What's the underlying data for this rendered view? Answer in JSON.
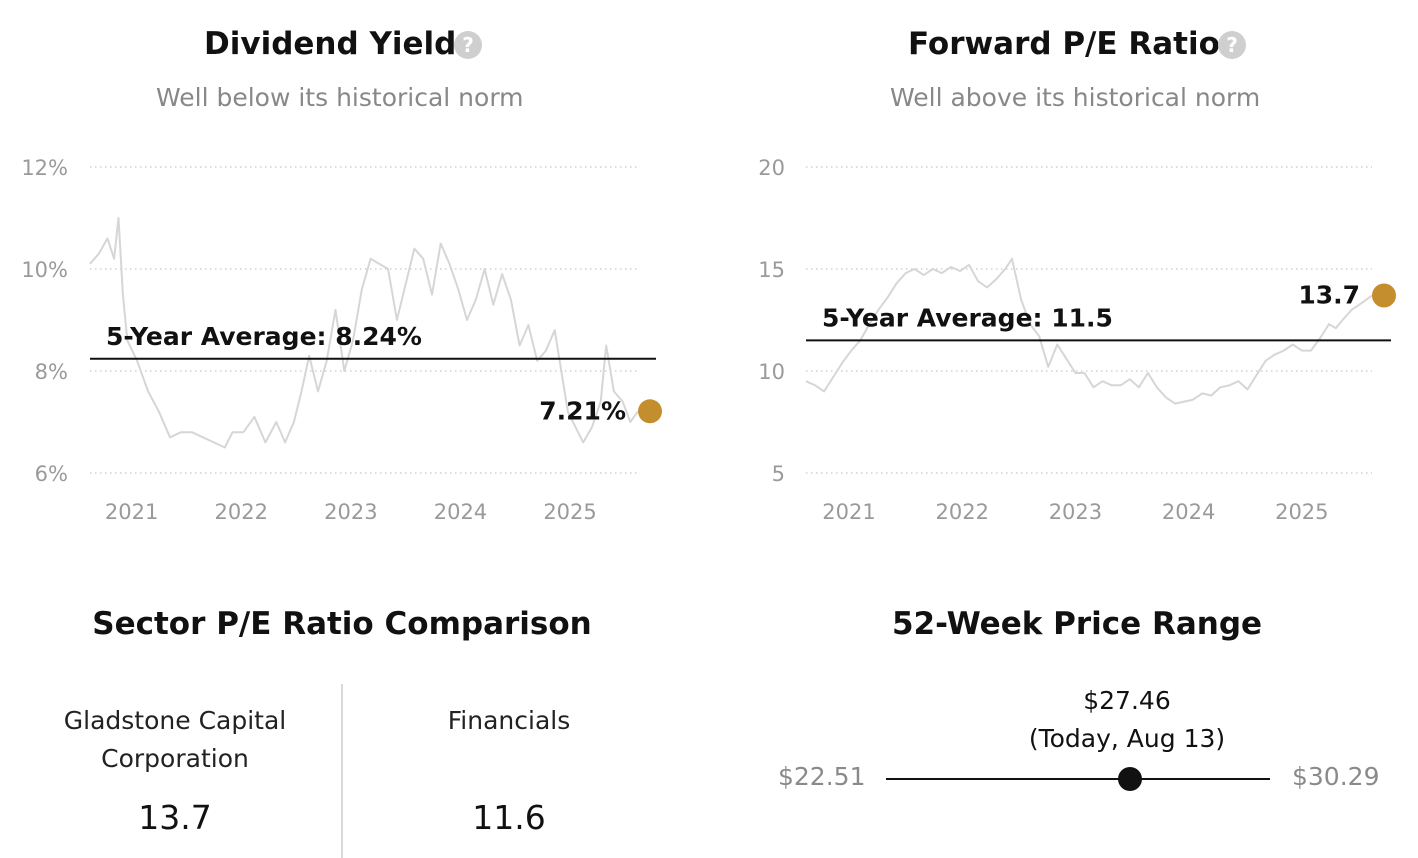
{
  "dividend": {
    "title": "Dividend Yield",
    "subtitle": "Well below its historical norm"
  },
  "pe": {
    "title": "Forward P/E Ratio",
    "subtitle": "Well above its historical norm"
  },
  "sector": {
    "title": "Sector P/E Ratio Comparison",
    "company_name": "Gladstone Capital Corporation",
    "company_value": "13.7",
    "sector_name": "Financials",
    "sector_value": "11.6"
  },
  "range": {
    "title": "52-Week Price Range",
    "current_price": "$27.46",
    "current_note": "(Today, Aug 13)",
    "low": "$22.51",
    "high": "$30.29",
    "low_value": 22.51,
    "high_value": 30.29,
    "current_value": 27.46
  },
  "colors": {
    "accent": "#c48e2e",
    "history_line": "#d6d6d6",
    "average_line": "#111111",
    "grid": "#c8c8c8"
  },
  "icons": [
    "help-icon"
  ],
  "chart_data": [
    {
      "type": "line",
      "title": "Dividend Yield",
      "subtitle": "Well below its historical norm",
      "x_ticks": [
        "2021",
        "2022",
        "2023",
        "2024",
        "2025"
      ],
      "x_range": [
        2020.62,
        2025.62
      ],
      "y_ticks": [
        "6%",
        "8%",
        "10%",
        "12%"
      ],
      "ylim": [
        6,
        12
      ],
      "grid": true,
      "average": {
        "label": "5-Year Average: 8.24%",
        "value": 8.24
      },
      "current": {
        "label": "7.21%",
        "value": 7.21,
        "x": 2025.62
      },
      "series": [
        {
          "x": [
            2020.62,
            2020.7,
            2020.78,
            2020.84,
            2020.88,
            2020.92,
            2020.96,
            2021.05,
            2021.15,
            2021.25,
            2021.35,
            2021.45,
            2021.55,
            2021.65,
            2021.75,
            2021.85,
            2021.92,
            2022.02,
            2022.12,
            2022.22,
            2022.32,
            2022.4,
            2022.48,
            2022.55,
            2022.62,
            2022.7,
            2022.78,
            2022.86,
            2022.94,
            2023.02,
            2023.1,
            2023.18,
            2023.26,
            2023.34,
            2023.42,
            2023.5,
            2023.58,
            2023.66,
            2023.74,
            2023.82,
            2023.9,
            2023.98,
            2024.06,
            2024.14,
            2024.22,
            2024.3,
            2024.38,
            2024.46,
            2024.54,
            2024.62,
            2024.7,
            2024.78,
            2024.86,
            2024.92,
            2024.98,
            2025.05,
            2025.12,
            2025.2,
            2025.28,
            2025.33,
            2025.4,
            2025.48,
            2025.55,
            2025.62
          ],
          "values": [
            10.1,
            10.3,
            10.6,
            10.2,
            11.0,
            9.5,
            8.6,
            8.2,
            7.6,
            7.2,
            6.7,
            6.8,
            6.8,
            6.7,
            6.6,
            6.5,
            6.8,
            6.8,
            7.1,
            6.6,
            7.0,
            6.6,
            7.0,
            7.6,
            8.3,
            7.6,
            8.2,
            9.2,
            8.0,
            8.6,
            9.6,
            10.2,
            10.1,
            10.0,
            9.0,
            9.7,
            10.4,
            10.2,
            9.5,
            10.5,
            10.1,
            9.6,
            9.0,
            9.4,
            10.0,
            9.3,
            9.9,
            9.4,
            8.5,
            8.9,
            8.2,
            8.4,
            8.8,
            8.0,
            7.2,
            6.9,
            6.6,
            6.9,
            7.4,
            8.5,
            7.6,
            7.4,
            7.0,
            7.21
          ]
        }
      ]
    },
    {
      "type": "line",
      "title": "Forward P/E Ratio",
      "subtitle": "Well above its historical norm",
      "x_ticks": [
        "2021",
        "2022",
        "2023",
        "2024",
        "2025"
      ],
      "x_range": [
        2020.62,
        2025.62
      ],
      "y_ticks": [
        "5",
        "10",
        "15",
        "20"
      ],
      "ylim": [
        5,
        20
      ],
      "grid": true,
      "average": {
        "label": "5-Year Average: 11.5",
        "value": 11.5
      },
      "current": {
        "label": "13.7",
        "value": 13.7,
        "x": 2025.62
      },
      "series": [
        {
          "x": [
            2020.62,
            2020.7,
            2020.78,
            2020.86,
            2020.94,
            2021.02,
            2021.1,
            2021.18,
            2021.26,
            2021.34,
            2021.42,
            2021.5,
            2021.58,
            2021.66,
            2021.74,
            2021.82,
            2021.9,
            2021.98,
            2022.06,
            2022.14,
            2022.22,
            2022.3,
            2022.38,
            2022.44,
            2022.52,
            2022.6,
            2022.68,
            2022.76,
            2022.84,
            2022.92,
            2023.0,
            2023.08,
            2023.16,
            2023.24,
            2023.32,
            2023.4,
            2023.48,
            2023.56,
            2023.64,
            2023.72,
            2023.8,
            2023.88,
            2023.96,
            2024.04,
            2024.12,
            2024.2,
            2024.28,
            2024.36,
            2024.44,
            2024.52,
            2024.6,
            2024.68,
            2024.76,
            2024.84,
            2024.92,
            2025.0,
            2025.08,
            2025.16,
            2025.24,
            2025.3,
            2025.36,
            2025.44,
            2025.52,
            2025.62
          ],
          "values": [
            9.5,
            9.3,
            9.0,
            9.7,
            10.4,
            11.0,
            11.5,
            12.3,
            13.0,
            13.6,
            14.3,
            14.8,
            15.0,
            14.7,
            15.0,
            14.8,
            15.1,
            14.9,
            15.2,
            14.4,
            14.1,
            14.5,
            15.0,
            15.5,
            13.5,
            12.3,
            11.7,
            10.2,
            11.3,
            10.6,
            9.9,
            9.9,
            9.2,
            9.5,
            9.3,
            9.3,
            9.6,
            9.2,
            9.9,
            9.2,
            8.7,
            8.4,
            8.5,
            8.6,
            8.9,
            8.8,
            9.2,
            9.3,
            9.5,
            9.1,
            9.8,
            10.5,
            10.8,
            11.0,
            11.3,
            11.0,
            11.0,
            11.6,
            12.3,
            12.1,
            12.5,
            13.0,
            13.3,
            13.7
          ]
        }
      ]
    }
  ]
}
